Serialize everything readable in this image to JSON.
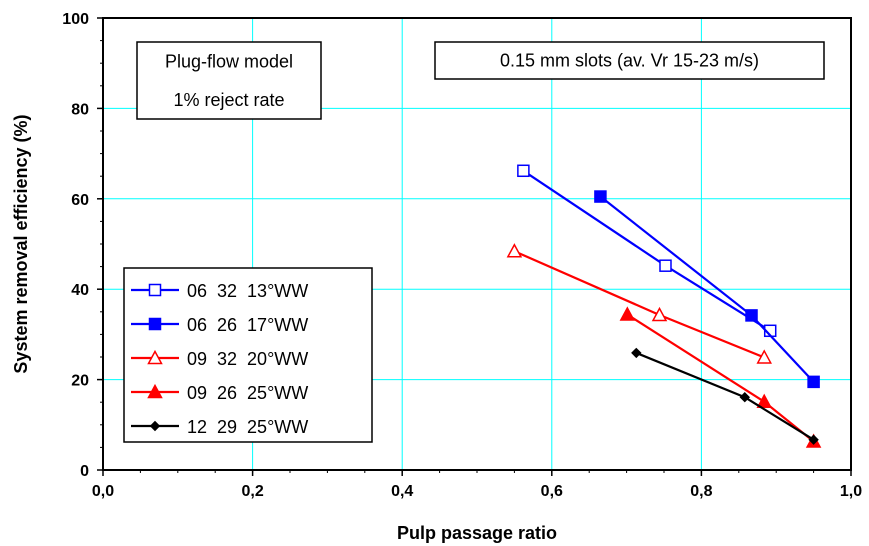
{
  "chart_data": {
    "type": "scatter",
    "xlabel": "Pulp passage ratio",
    "ylabel": "System removal efficiency (%)",
    "xlim": [
      0.0,
      1.0
    ],
    "ylim": [
      0,
      100
    ],
    "x_ticks": [
      "0,0",
      "0,2",
      "0,4",
      "0,6",
      "0,8",
      "1,0"
    ],
    "x_tick_values": [
      0.0,
      0.2,
      0.4,
      0.6,
      0.8,
      1.0
    ],
    "y_ticks": [
      "0",
      "20",
      "40",
      "60",
      "80",
      "100"
    ],
    "y_tick_values": [
      0,
      20,
      40,
      60,
      80,
      100
    ],
    "grid": true,
    "legend_position": "left",
    "annotations": [
      {
        "id": "model",
        "lines": [
          "Plug-flow model",
          "1% reject rate"
        ]
      },
      {
        "id": "slots",
        "lines": [
          "0.15 mm slots (av. Vr 15-23 m/s)"
        ]
      }
    ],
    "series": [
      {
        "name": "06  32  13°WW",
        "color": "#0000ff",
        "marker": "square-open",
        "points": [
          [
            0.562,
            66.2
          ],
          [
            0.752,
            45.2
          ],
          [
            0.892,
            30.8
          ]
        ]
      },
      {
        "name": "06  26  17°WW",
        "color": "#0000ff",
        "marker": "square-filled",
        "points": [
          [
            0.665,
            60.5
          ],
          [
            0.867,
            34.2
          ],
          [
            0.95,
            19.5
          ]
        ]
      },
      {
        "name": "09  32  20°WW",
        "color": "#ff0000",
        "marker": "triangle-open",
        "points": [
          [
            0.55,
            48.4
          ],
          [
            0.744,
            34.3
          ],
          [
            0.884,
            24.9
          ]
        ]
      },
      {
        "name": "09  26  25°WW",
        "color": "#ff0000",
        "marker": "triangle-filled",
        "points": [
          [
            0.701,
            34.4
          ],
          [
            0.884,
            15.1
          ],
          [
            0.95,
            6.3
          ]
        ]
      },
      {
        "name": "12  29  25°WW",
        "color": "#000000",
        "marker": "diamond-filled",
        "points": [
          [
            0.713,
            25.9
          ],
          [
            0.858,
            16.1
          ],
          [
            0.95,
            6.7
          ]
        ]
      }
    ]
  }
}
